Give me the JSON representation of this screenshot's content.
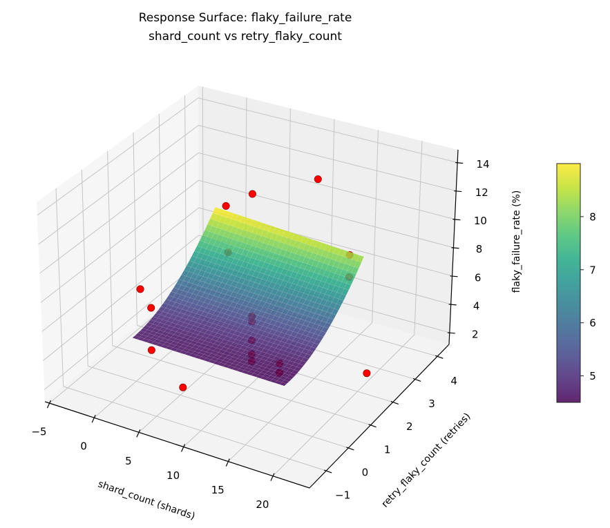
{
  "chart_data": {
    "type": "surface3d",
    "title": "Response Surface: flaky_failure_rate",
    "subtitle": "shard_count vs retry_flaky_count",
    "xlabel": "shard_count (shards)",
    "ylabel": "retry_flaky_count (retries)",
    "zlabel": "flaky_failure_rate (%)",
    "xlim": [
      -5.5,
      24.1
    ],
    "ylim": [
      -1.75,
      4.52
    ],
    "zlim": [
      1.17,
      14.9
    ],
    "grid": true,
    "xticks": [
      -5,
      0,
      5,
      10,
      15,
      20
    ],
    "xtick_labels": [
      "−5",
      "0",
      "5",
      "10",
      "15",
      "20"
    ],
    "yticks": [
      -1,
      0,
      1,
      2,
      3,
      4
    ],
    "ytick_labels": [
      "−1",
      "0",
      "1",
      "2",
      "3",
      "4"
    ],
    "zticks": [
      2,
      4,
      6,
      8,
      10,
      12,
      14
    ],
    "ztick_labels": [
      "2",
      "4",
      "6",
      "8",
      "10",
      "12",
      "14"
    ],
    "surface": {
      "x_range": [
        0.5,
        17.5
      ],
      "y_range": [
        -0.3,
        3.1
      ],
      "fit": {
        "intercept": 4.734,
        "x": -0.0117,
        "y": 0.228,
        "y2": 0.38,
        "xy": -0.0089
      },
      "colormap": "viridis",
      "alpha": 0.85
    },
    "colorbar": {
      "clim": [
        4.5,
        9.0
      ],
      "ticks": [
        5,
        6,
        7,
        8
      ],
      "tick_labels": [
        "5",
        "6",
        "7",
        "8"
      ]
    },
    "point_color": "#ff0000",
    "points": [
      {
        "x": 2.0,
        "y": 3.0,
        "z": 9.55
      },
      {
        "x": 5.0,
        "y": 3.0,
        "z": 10.9
      },
      {
        "x": 9.7,
        "y": 4.0,
        "z": 11.3
      },
      {
        "x": 0.0,
        "y": 3.8,
        "z": 4.74
      },
      {
        "x": 13.0,
        "y": 4.2,
        "z": 6.15
      },
      {
        "x": 13.0,
        "y": 4.2,
        "z": 4.58
      },
      {
        "x": -3.6,
        "y": 1.5,
        "z": 4.8
      },
      {
        "x": -2.4,
        "y": 1.5,
        "z": 3.7
      },
      {
        "x": 9.1,
        "y": 1.5,
        "z": 5.17
      },
      {
        "x": 9.1,
        "y": 1.5,
        "z": 4.8
      },
      {
        "x": 9.1,
        "y": 1.5,
        "z": 3.5
      },
      {
        "x": 9.1,
        "y": 1.5,
        "z": 2.55
      },
      {
        "x": 9.1,
        "y": 1.5,
        "z": 2.07
      },
      {
        "x": 14.9,
        "y": 0.5,
        "z": 4.43
      },
      {
        "x": 14.9,
        "y": 0.5,
        "z": 3.8
      },
      {
        "x": 4.0,
        "y": -0.8,
        "z": 5.2
      },
      {
        "x": 8.0,
        "y": -1.0,
        "z": 3.7
      },
      {
        "x": 21.0,
        "y": 2.0,
        "z": 2.6
      }
    ]
  }
}
